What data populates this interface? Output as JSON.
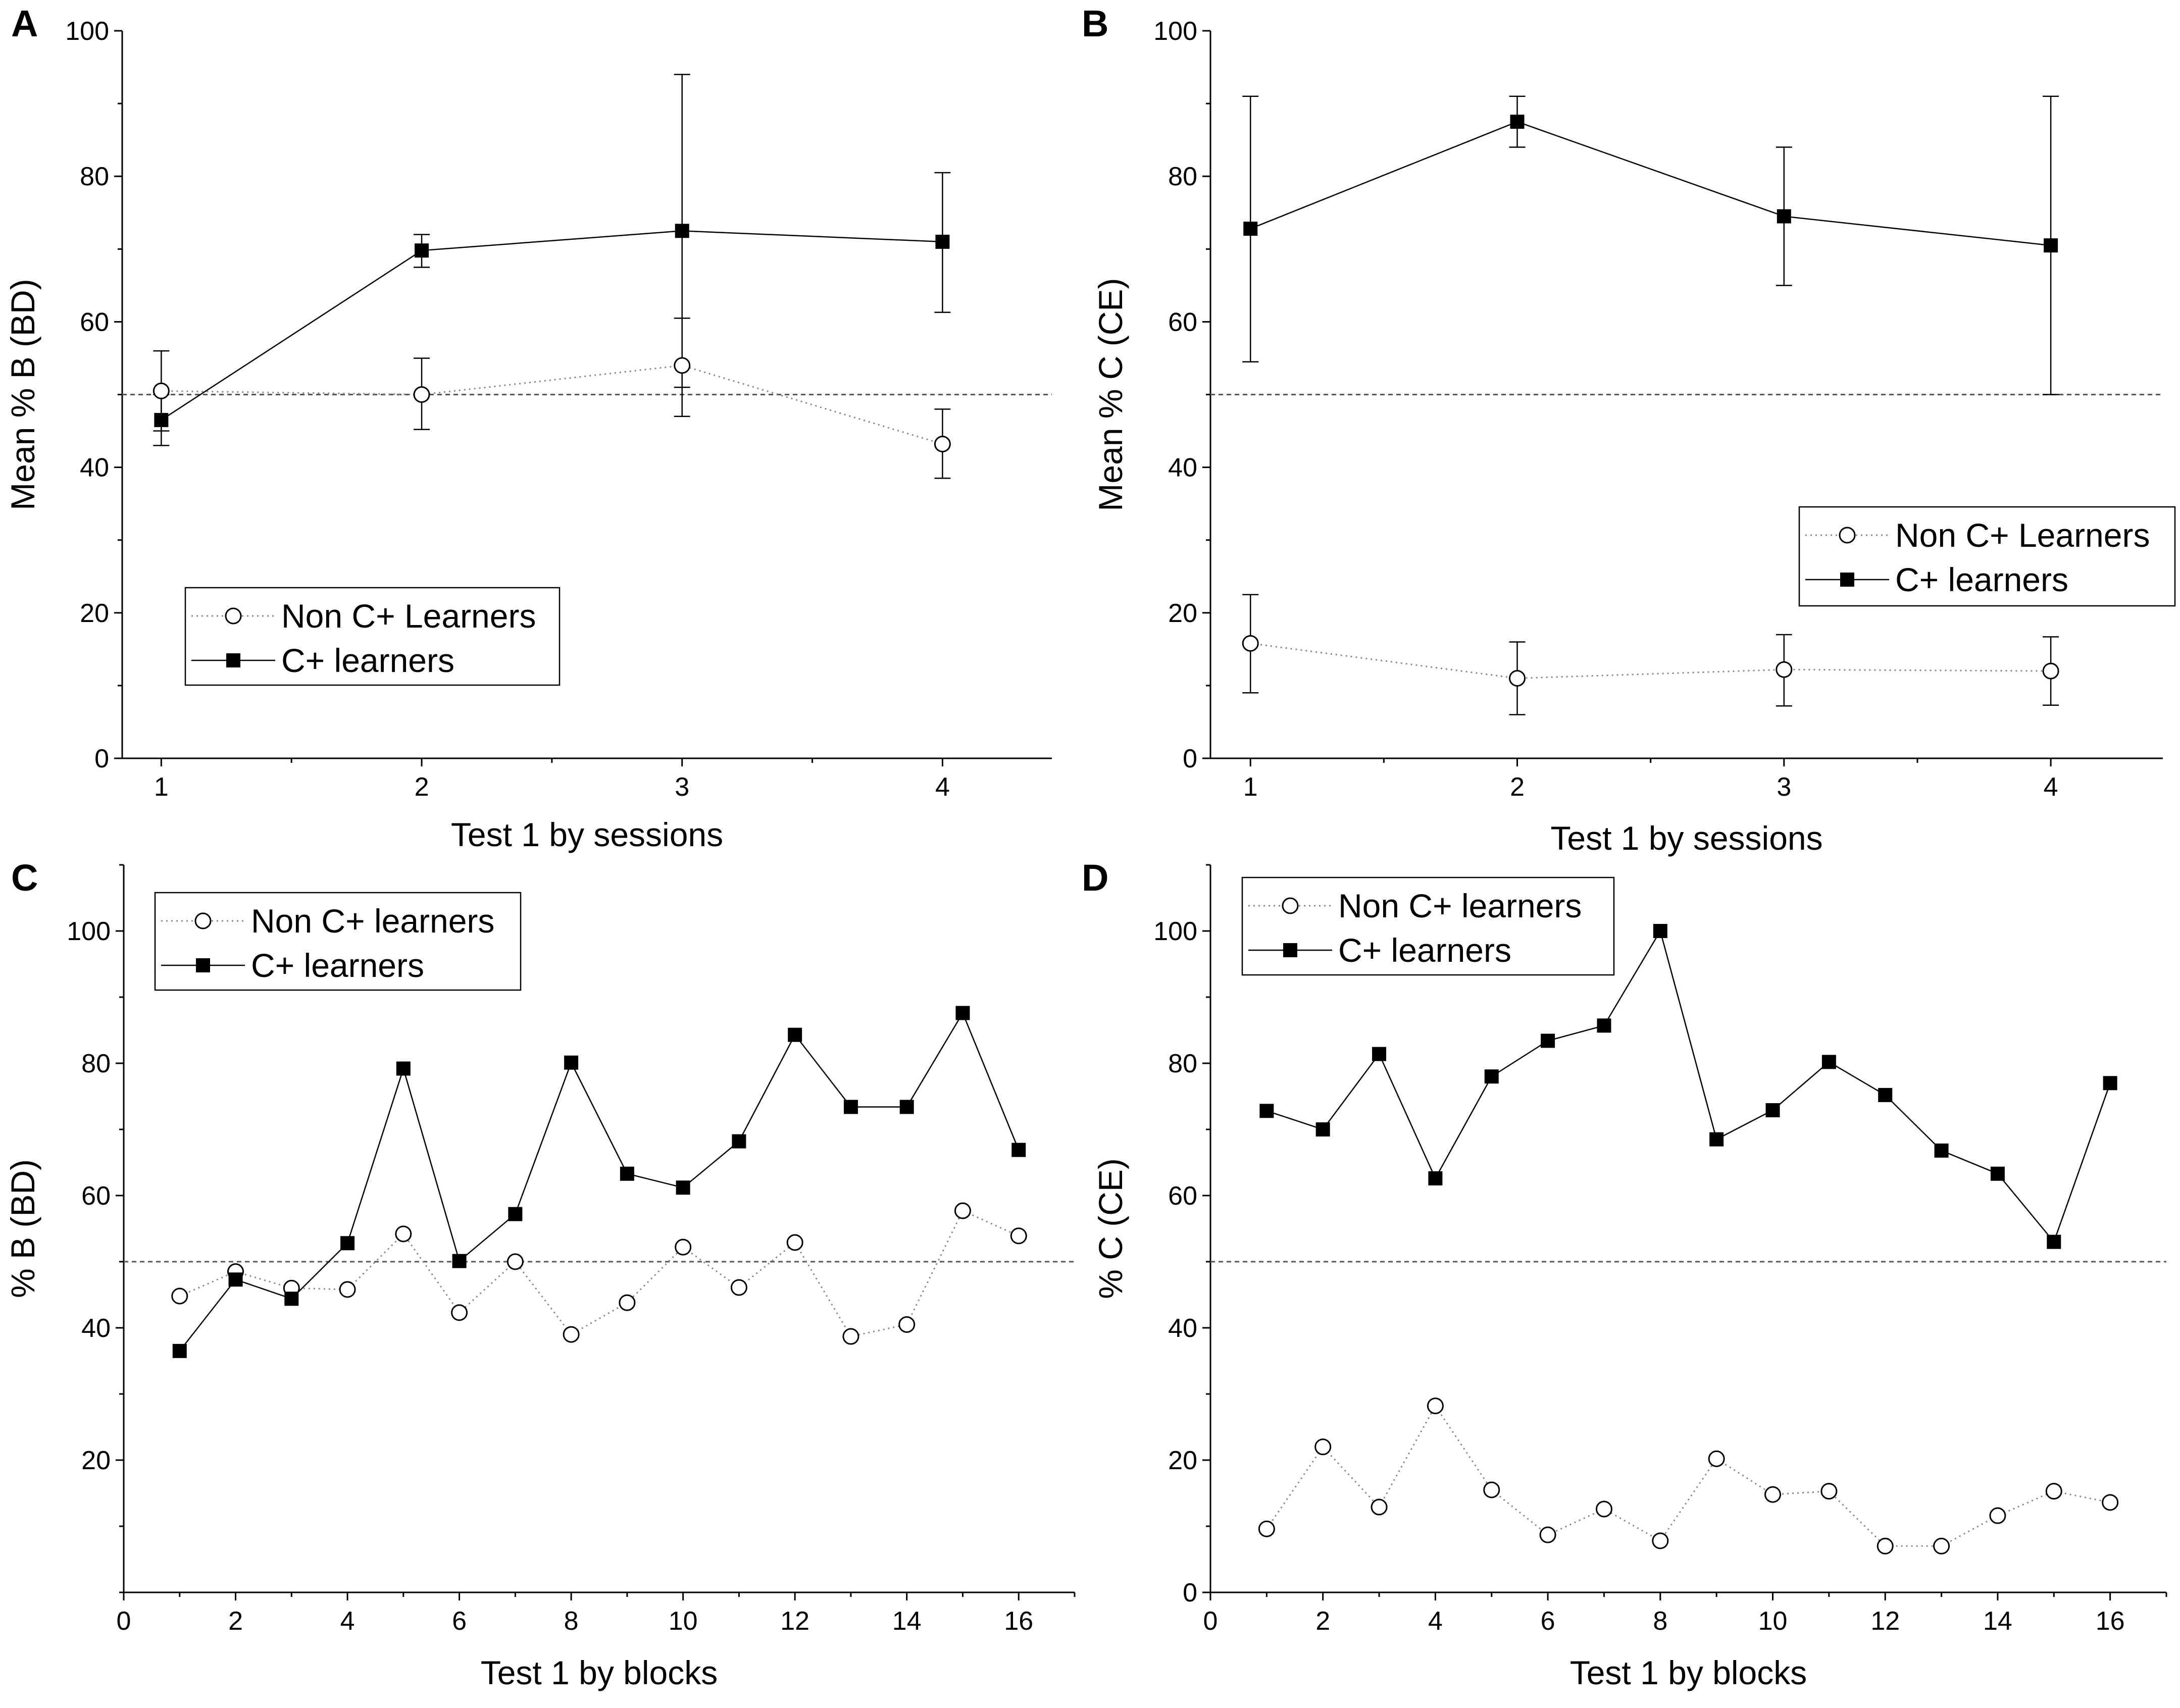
{
  "chart_data": [
    {
      "panel": "A",
      "type": "line",
      "xlabel": "Test 1 by sessions",
      "ylabel": "Mean % B (BD)",
      "xlim": [
        0.85,
        4.42
      ],
      "ylim": [
        0,
        100
      ],
      "xticks": [
        1,
        2,
        3,
        4
      ],
      "yticks": [
        0,
        20,
        40,
        60,
        80,
        100
      ],
      "reference_line": 50,
      "legend_position": "lower-left",
      "series": [
        {
          "name": "Non C+ Learners",
          "style": "dotted-open-circle",
          "x": [
            1,
            2,
            3,
            4
          ],
          "y": [
            50.5,
            50,
            54,
            43.2
          ],
          "err_low": [
            45,
            45.2,
            47,
            38.5
          ],
          "err_high": [
            56,
            55,
            60.5,
            48
          ]
        },
        {
          "name": "C+ learners",
          "style": "solid-filled-square",
          "x": [
            1,
            2,
            3,
            4
          ],
          "y": [
            46.5,
            69.8,
            72.5,
            71
          ],
          "err_low": [
            43,
            67.5,
            51,
            61.3
          ],
          "err_high": [
            50,
            72,
            94,
            80.5
          ]
        }
      ]
    },
    {
      "panel": "B",
      "type": "line",
      "xlabel": "Test 1 by sessions",
      "ylabel": "Mean % C (CE)",
      "xlim": [
        0.85,
        4.42
      ],
      "ylim": [
        0,
        100
      ],
      "xticks": [
        1,
        2,
        3,
        4
      ],
      "yticks": [
        0,
        20,
        40,
        60,
        80,
        100
      ],
      "reference_line": 50,
      "legend_position": "right",
      "series": [
        {
          "name": "Non C+ Learners",
          "style": "dotted-open-circle",
          "x": [
            1,
            2,
            3,
            4
          ],
          "y": [
            15.8,
            11,
            12.2,
            12
          ],
          "err_low": [
            9,
            6,
            7.2,
            7.3
          ],
          "err_high": [
            22.5,
            16,
            17,
            16.7
          ]
        },
        {
          "name": "C+ learners",
          "style": "solid-filled-square",
          "x": [
            1,
            2,
            3,
            4
          ],
          "y": [
            72.8,
            87.5,
            74.5,
            70.5
          ],
          "err_low": [
            54.5,
            84,
            65,
            50
          ],
          "err_high": [
            91,
            91,
            84,
            91
          ]
        }
      ]
    },
    {
      "panel": "C",
      "type": "line",
      "xlabel": "Test 1 by blocks",
      "ylabel": "% B (BD)",
      "xlim": [
        0,
        17
      ],
      "ylim": [
        0,
        110
      ],
      "xticks": [
        0,
        2,
        4,
        6,
        8,
        10,
        12,
        14,
        16
      ],
      "yticks": [
        20,
        40,
        60,
        80,
        100
      ],
      "reference_line": 50,
      "legend_position": "top-left",
      "series": [
        {
          "name": "Non C+ learners",
          "style": "dotted-open-circle",
          "x": [
            1,
            2,
            3,
            4,
            5,
            6,
            7,
            8,
            9,
            10,
            11,
            12,
            13,
            14,
            15,
            16
          ],
          "y": [
            44.8,
            48.5,
            46,
            45.8,
            54.2,
            42.3,
            50,
            39,
            43.8,
            52.2,
            46.1,
            52.9,
            38.7,
            40.5,
            57.7,
            53.9
          ]
        },
        {
          "name": "C+ learners",
          "style": "solid-filled-square",
          "x": [
            1,
            2,
            3,
            4,
            5,
            6,
            7,
            8,
            9,
            10,
            11,
            12,
            13,
            14,
            15,
            16
          ],
          "y": [
            36.5,
            47.3,
            44.4,
            52.8,
            79.2,
            50.1,
            57.2,
            80.1,
            63.3,
            61.2,
            68.2,
            84.3,
            73.4,
            73.4,
            87.6,
            66.9
          ]
        }
      ]
    },
    {
      "panel": "D",
      "type": "line",
      "xlabel": "Test 1 by blocks",
      "ylabel": "% C (CE)",
      "xlim": [
        0,
        17
      ],
      "ylim": [
        0,
        110
      ],
      "xticks": [
        0,
        2,
        4,
        6,
        8,
        10,
        12,
        14,
        16
      ],
      "yticks": [
        0,
        20,
        40,
        60,
        80,
        100
      ],
      "reference_line": 50,
      "legend_position": "top-left",
      "series": [
        {
          "name": "Non C+ learners",
          "style": "dotted-open-circle",
          "x": [
            1,
            2,
            3,
            4,
            5,
            6,
            7,
            8,
            9,
            10,
            11,
            12,
            13,
            14,
            15,
            16
          ],
          "y": [
            9.6,
            22,
            12.9,
            28.2,
            15.5,
            8.7,
            12.6,
            7.8,
            20.2,
            14.8,
            15.3,
            7,
            7,
            11.6,
            15.3,
            13.6
          ]
        },
        {
          "name": "C+ learners",
          "style": "solid-filled-square",
          "x": [
            1,
            2,
            3,
            4,
            5,
            6,
            7,
            8,
            9,
            10,
            11,
            12,
            13,
            14,
            15,
            16
          ],
          "y": [
            72.8,
            70,
            81.4,
            62.6,
            78,
            83.4,
            85.7,
            100,
            68.5,
            72.9,
            80.2,
            75.2,
            66.8,
            63.3,
            53,
            77
          ]
        }
      ]
    }
  ]
}
